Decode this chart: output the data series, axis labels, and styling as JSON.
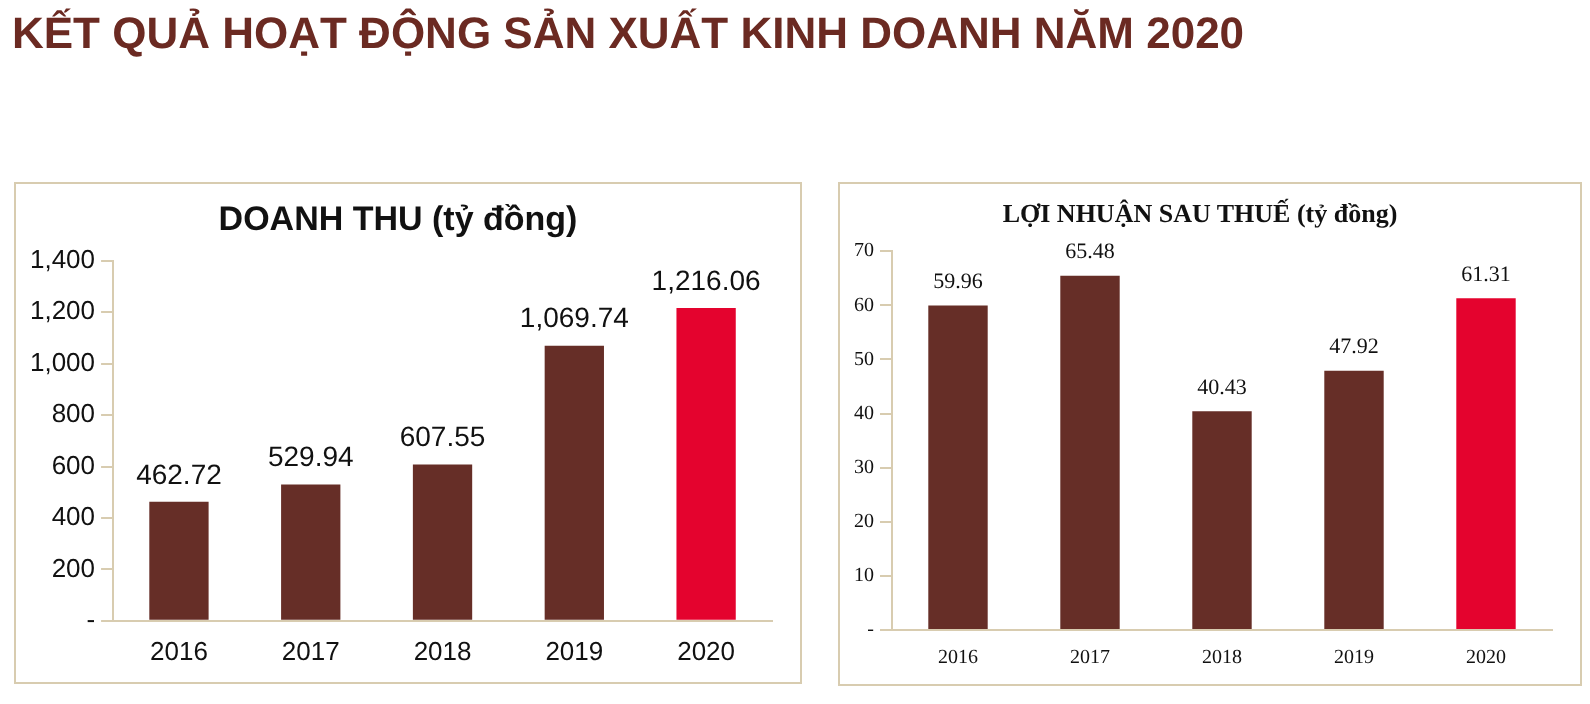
{
  "chart_data": [
    {
      "type": "bar",
      "title": "DOANH THU (tỷ đồng)",
      "annotations": [
        "KẾT QUẢ HOẠT ĐỘNG SẢN XUẤT KINH DOANH NĂM 2020"
      ],
      "categories": [
        "2016",
        "2017",
        "2018",
        "2019",
        "2020"
      ],
      "values": [
        462.72,
        529.94,
        607.55,
        1069.74,
        1216.06
      ],
      "value_labels": [
        "462.72",
        "529.94",
        "607.55",
        "1,069.74",
        "1,216.06"
      ],
      "colors": [
        "#662e27",
        "#662e27",
        "#662e27",
        "#662e27",
        "#e4032e"
      ],
      "ylim": [
        0,
        1400
      ],
      "yticks": [
        {
          "value": 0,
          "label": "-"
        },
        {
          "value": 200,
          "label": "200"
        },
        {
          "value": 400,
          "label": "400"
        },
        {
          "value": 600,
          "label": "600"
        },
        {
          "value": 800,
          "label": "800"
        },
        {
          "value": 1000,
          "label": "1,000"
        },
        {
          "value": 1200,
          "label": "1,200"
        },
        {
          "value": 1400,
          "label": "1,400"
        }
      ],
      "grid": false,
      "legend": false
    },
    {
      "type": "bar",
      "title": "LỢI NHUẬN SAU THUẾ (tỷ đồng)",
      "categories": [
        "2016",
        "2017",
        "2018",
        "2019",
        "2020"
      ],
      "values": [
        59.96,
        65.48,
        40.43,
        47.92,
        61.31
      ],
      "value_labels": [
        "59.96",
        "65.48",
        "40.43",
        "47.92",
        "61.31"
      ],
      "colors": [
        "#662e27",
        "#662e27",
        "#662e27",
        "#662e27",
        "#e4032e"
      ],
      "ylim": [
        0,
        70
      ],
      "yticks": [
        {
          "value": 0,
          "label": "-"
        },
        10,
        20,
        30,
        40,
        50,
        60,
        70
      ],
      "grid": false,
      "legend": false
    }
  ]
}
